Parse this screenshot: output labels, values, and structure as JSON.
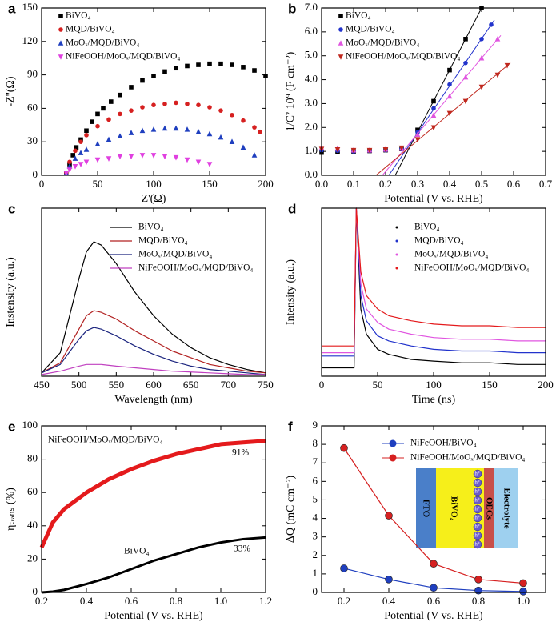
{
  "chart_data": [
    {
      "panel": "a",
      "type": "scatter",
      "x_label": "Z'(Ω)",
      "y_label": "-Z''(Ω)",
      "xlim": [
        0,
        200
      ],
      "ylim": [
        0,
        150
      ],
      "xticks": [
        0,
        50,
        100,
        150,
        200
      ],
      "yticks": [
        0,
        30,
        60,
        90,
        120,
        150
      ],
      "legend": "upper left",
      "series": [
        {
          "name": "BiVO₄",
          "color": "#000000",
          "marker": "square",
          "x": [
            22,
            25,
            28,
            31,
            35,
            40,
            45,
            50,
            55,
            62,
            70,
            80,
            90,
            100,
            110,
            120,
            130,
            140,
            150,
            160,
            170,
            180,
            190,
            200
          ],
          "values": [
            2,
            10,
            18,
            25,
            32,
            40,
            48,
            55,
            60,
            66,
            72,
            79,
            85,
            89,
            93,
            96,
            98,
            99,
            100,
            100,
            99,
            97,
            94,
            89
          ]
        },
        {
          "name": "MQD/BiVO₄",
          "color": "#d62020",
          "marker": "circle",
          "x": [
            22,
            25,
            30,
            35,
            40,
            50,
            60,
            70,
            80,
            90,
            100,
            110,
            120,
            130,
            140,
            150,
            160,
            170,
            180,
            190,
            195
          ],
          "values": [
            2,
            12,
            22,
            30,
            36,
            44,
            50,
            55,
            58,
            61,
            63,
            64,
            65,
            64,
            63,
            61,
            58,
            54,
            49,
            43,
            39
          ]
        },
        {
          "name": "MoOₓ/MQD/BiVO₄",
          "color": "#1f3fbf",
          "marker": "triangle-up",
          "x": [
            22,
            25,
            30,
            35,
            40,
            50,
            60,
            70,
            80,
            90,
            100,
            110,
            120,
            130,
            140,
            150,
            160,
            170,
            180,
            190
          ],
          "values": [
            2,
            8,
            15,
            20,
            23,
            28,
            32,
            35,
            38,
            40,
            41,
            42,
            42,
            41,
            39,
            37,
            34,
            30,
            25,
            18
          ]
        },
        {
          "name": "NiFeOOH/MoOₓ/MQD/BiVO₄",
          "color": "#e040e0",
          "marker": "triangle-down",
          "x": [
            22,
            25,
            30,
            35,
            40,
            50,
            60,
            70,
            80,
            90,
            100,
            110,
            120,
            130,
            140,
            150
          ],
          "values": [
            2,
            5,
            8,
            10,
            12,
            14,
            15,
            17,
            17,
            18,
            18,
            17,
            16,
            14,
            12,
            10
          ]
        }
      ]
    },
    {
      "panel": "b",
      "type": "scatter",
      "x_label": "Potential (V vs. RHE)",
      "y_label": "1/C² 10⁹ (F cm⁻²)",
      "xlim": [
        0,
        0.7
      ],
      "ylim": [
        0,
        7
      ],
      "xticks": [
        {
          "value": 0,
          "label": "0.0"
        },
        0.1,
        0.2,
        0.3,
        0.4,
        0.5,
        0.6,
        0.7
      ],
      "yticks": [
        {
          "value": 0,
          "label": "0.0"
        },
        {
          "value": 1,
          "label": "1.0"
        },
        {
          "value": 2,
          "label": "2.0"
        },
        {
          "value": 3,
          "label": "3.0"
        },
        {
          "value": 4,
          "label": "4.0"
        },
        {
          "value": 5,
          "label": "5.0"
        },
        {
          "value": 6,
          "label": "6.0"
        },
        {
          "value": 7,
          "label": "7.0"
        }
      ],
      "legend": "upper left",
      "series": [
        {
          "name": "BiVO₄",
          "color": "#000000",
          "marker": "square",
          "x": [
            0,
            0.05,
            0.1,
            0.15,
            0.2,
            0.25,
            0.3,
            0.35,
            0.4,
            0.45,
            0.5
          ],
          "values": [
            0.95,
            0.97,
            1.0,
            1.02,
            1.05,
            1.1,
            1.9,
            3.1,
            4.4,
            5.7,
            7.0
          ],
          "fit": {
            "x": [
              0.23,
              0.5
            ],
            "values": [
              0,
              7.0
            ]
          }
        },
        {
          "name": "MQD/BiVO₄",
          "color": "#2233cc",
          "marker": "circle",
          "x": [
            0,
            0.05,
            0.1,
            0.15,
            0.2,
            0.25,
            0.3,
            0.35,
            0.4,
            0.45,
            0.5,
            0.53
          ],
          "values": [
            1.05,
            1.03,
            1.0,
            1.02,
            1.05,
            1.1,
            1.8,
            2.8,
            3.8,
            4.7,
            5.7,
            6.3
          ],
          "fit": {
            "x": [
              0.21,
              0.54
            ],
            "values": [
              0,
              6.5
            ]
          }
        },
        {
          "name": "MoOₓ/MQD/BiVO₄",
          "color": "#e055e0",
          "marker": "triangle-up",
          "x": [
            0,
            0.05,
            0.1,
            0.15,
            0.2,
            0.25,
            0.3,
            0.35,
            0.4,
            0.45,
            0.5,
            0.55
          ],
          "values": [
            1.15,
            1.12,
            1.05,
            1.05,
            1.08,
            1.12,
            1.7,
            2.5,
            3.3,
            4.1,
            4.9,
            5.7
          ],
          "fit": {
            "x": [
              0.19,
              0.56
            ],
            "values": [
              0,
              5.85
            ]
          }
        },
        {
          "name": "NiFeOOH/MoOₓ/MQD/BiVO₄",
          "color": "#c0281e",
          "marker": "triangle-down",
          "x": [
            0,
            0.05,
            0.1,
            0.15,
            0.2,
            0.25,
            0.3,
            0.35,
            0.4,
            0.45,
            0.5,
            0.55,
            0.58
          ],
          "values": [
            1.1,
            1.08,
            1.05,
            1.05,
            1.08,
            1.15,
            1.5,
            2.0,
            2.6,
            3.1,
            3.7,
            4.2,
            4.6
          ],
          "fit": {
            "x": [
              0.17,
              0.59
            ],
            "values": [
              0,
              4.7
            ]
          }
        }
      ]
    },
    {
      "panel": "c",
      "type": "line",
      "x_label": "Wavelength (nm)",
      "y_label": "Instensity (a.u.)",
      "xlim": [
        450,
        750
      ],
      "ylim": [
        0,
        100
      ],
      "xticks": [
        450,
        500,
        550,
        600,
        650,
        700,
        750
      ],
      "legend": "upper right",
      "x": [
        450,
        475,
        500,
        510,
        520,
        530,
        550,
        575,
        600,
        625,
        650,
        675,
        700,
        725,
        750
      ],
      "series": [
        {
          "name": "BiVO₄",
          "color": "#000000",
          "values": [
            2,
            14,
            58,
            74,
            80,
            78,
            67,
            50,
            36,
            25,
            17,
            11,
            7,
            4,
            2
          ]
        },
        {
          "name": "MQD/BiVO₄",
          "color": "#b22222",
          "values": [
            2,
            8,
            28,
            36,
            39,
            38,
            34,
            27,
            21,
            15,
            11,
            7,
            5,
            3,
            2
          ]
        },
        {
          "name": "MoOₓ/MQD/BiVO₄",
          "color": "#1a237e",
          "values": [
            2,
            7,
            22,
            27,
            29,
            28,
            24,
            18,
            13,
            9,
            6,
            4,
            3,
            2,
            1
          ]
        },
        {
          "name": "NiFeOOH/MoOₓ/MQD/BiVO₄",
          "color": "#c040c0",
          "values": [
            1,
            3,
            6,
            7,
            7,
            7,
            6,
            5,
            4,
            3,
            2.5,
            2,
            1.5,
            1,
            1
          ]
        }
      ]
    },
    {
      "panel": "d",
      "type": "line",
      "x_label": "Time (ns)",
      "y_label": "Intensity (a.u.)",
      "xlim": [
        0,
        200
      ],
      "ylim": [
        0,
        100
      ],
      "xticks": [
        0,
        50,
        100,
        150,
        200
      ],
      "legend": "upper right",
      "x": [
        0,
        10,
        20,
        29,
        31,
        35,
        40,
        50,
        60,
        80,
        100,
        125,
        150,
        175,
        200
      ],
      "series": [
        {
          "name": "BiVO₄",
          "color": "#000000",
          "values": [
            5,
            5,
            5,
            5,
            100,
            40,
            25,
            16,
            13,
            10,
            9,
            8,
            8,
            7,
            7
          ]
        },
        {
          "name": "MQD/BiVO₄",
          "color": "#2233cc",
          "values": [
            12,
            12,
            12,
            12,
            100,
            48,
            33,
            24,
            21,
            18,
            16,
            15,
            15,
            14,
            14
          ]
        },
        {
          "name": "MoOₓ/MQD/BiVO₄",
          "color": "#e055e0",
          "values": [
            14,
            14,
            14,
            14,
            100,
            55,
            40,
            32,
            28,
            25,
            23,
            22,
            22,
            21,
            21
          ]
        },
        {
          "name": "NiFeOOH/MoOₓ/MQD/BiVO₄",
          "color": "#e41a1c",
          "values": [
            18,
            18,
            18,
            18,
            100,
            62,
            48,
            40,
            36,
            33,
            31,
            30,
            30,
            29,
            29
          ]
        }
      ]
    },
    {
      "panel": "e",
      "type": "line",
      "x_label": "Potential (V vs. RHE)",
      "y_label": "ηₜᵣₐₙₛ (%)",
      "xlim": [
        0.2,
        1.2
      ],
      "ylim": [
        0,
        100
      ],
      "xticks": [
        0.2,
        0.4,
        0.6,
        0.8,
        {
          "value": 1,
          "label": "1.0"
        },
        1.2
      ],
      "yticks": [
        0,
        20,
        40,
        60,
        80,
        100
      ],
      "x": [
        0.2,
        0.25,
        0.3,
        0.4,
        0.5,
        0.6,
        0.7,
        0.8,
        0.9,
        1.0,
        1.1,
        1.2
      ],
      "series": [
        {
          "name": "NiFeOOH/MoOₓ/MQD/BiVO₄",
          "color": "#e41a1c",
          "values": [
            27,
            42,
            50,
            60,
            68,
            74,
            79,
            83,
            86,
            89,
            90,
            91
          ]
        },
        {
          "name": "BiVO₄",
          "color": "#000000",
          "values": [
            0,
            0.5,
            1.5,
            5,
            9,
            14,
            19,
            23,
            27,
            30,
            32,
            33
          ]
        }
      ],
      "annotations": [
        "91%",
        "33%"
      ]
    },
    {
      "panel": "f",
      "type": "line",
      "x_label": "Potential (V vs. RHE)",
      "y_label": "ΔQ (mC cm⁻²)",
      "xlim": [
        0.1,
        1.1
      ],
      "ylim": [
        0,
        9
      ],
      "xticks": [
        0.2,
        0.4,
        0.6,
        0.8,
        {
          "value": 1,
          "label": "1.0"
        }
      ],
      "yticks": [
        0,
        1,
        2,
        3,
        4,
        5,
        6,
        7,
        8,
        9
      ],
      "legend": "upper right",
      "x": [
        0.2,
        0.4,
        0.6,
        0.8,
        1.0
      ],
      "series": [
        {
          "name": "NiFeOOH/BiVO₄",
          "color": "#1f3fbf",
          "marker": "circle",
          "values": [
            1.3,
            0.7,
            0.25,
            0.1,
            0.05
          ]
        },
        {
          "name": "NiFeOOH/MoOₓ/MQD/BiVO₄",
          "color": "#d62020",
          "marker": "circle",
          "values": [
            7.8,
            4.15,
            1.55,
            0.7,
            0.5
          ]
        }
      ],
      "inset": {
        "labels": [
          "FTO",
          "BiVO₄",
          "OECs",
          "Electrolyte"
        ],
        "hole": "h⁺"
      }
    }
  ]
}
